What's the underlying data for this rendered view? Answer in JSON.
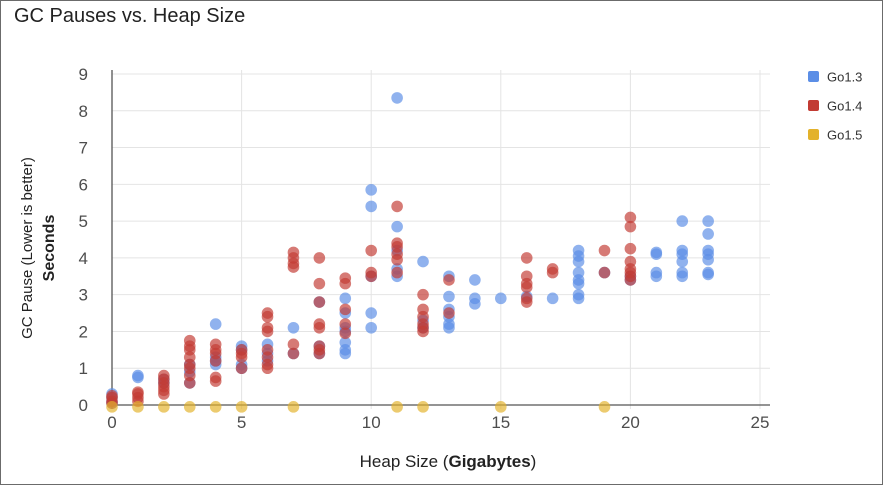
{
  "chart_data": {
    "type": "scatter",
    "title": "GC Pauses vs. Heap Size",
    "ylabel": "GC Pause (Lower is better)",
    "ylabel_unit": "Seconds",
    "xlabel": "Heap Size (",
    "xlabel_unit": "Gigabytes",
    "xlabel_suffix": ")",
    "xlim": [
      0,
      25
    ],
    "ylim": [
      0,
      9
    ],
    "xticks": [
      0,
      5,
      10,
      15,
      20,
      25
    ],
    "yticks": [
      0,
      1,
      2,
      3,
      4,
      5,
      6,
      7,
      8,
      9
    ],
    "grid": true,
    "legend_position": "right",
    "series": [
      {
        "name": "Go1.3",
        "color": "#5b8ee6",
        "points": [
          [
            0,
            0.05
          ],
          [
            0,
            0.1
          ],
          [
            0,
            0.2
          ],
          [
            0,
            0.3
          ],
          [
            1,
            0.75
          ],
          [
            1,
            0.8
          ],
          [
            2,
            0.6
          ],
          [
            2,
            0.7
          ],
          [
            3,
            0.6
          ],
          [
            3,
            0.9
          ],
          [
            3,
            1.1
          ],
          [
            4,
            1.1
          ],
          [
            4,
            1.2
          ],
          [
            4,
            1.3
          ],
          [
            4,
            2.2
          ],
          [
            5,
            1.0
          ],
          [
            5,
            1.1
          ],
          [
            5,
            1.5
          ],
          [
            5,
            1.6
          ],
          [
            6,
            1.2
          ],
          [
            6,
            1.4
          ],
          [
            6,
            1.65
          ],
          [
            7,
            1.4
          ],
          [
            7,
            2.1
          ],
          [
            8,
            1.4
          ],
          [
            8,
            1.6
          ],
          [
            8,
            2.8
          ],
          [
            9,
            1.4
          ],
          [
            9,
            1.5
          ],
          [
            9,
            1.7
          ],
          [
            9,
            2.0
          ],
          [
            9,
            2.1
          ],
          [
            9,
            2.5
          ],
          [
            9,
            2.9
          ],
          [
            10,
            2.1
          ],
          [
            10,
            2.5
          ],
          [
            10,
            3.5
          ],
          [
            10,
            5.4
          ],
          [
            10,
            5.85
          ],
          [
            11,
            3.5
          ],
          [
            11,
            3.7
          ],
          [
            11,
            4.2
          ],
          [
            11,
            4.85
          ],
          [
            11,
            8.35
          ],
          [
            12,
            2.1
          ],
          [
            12,
            2.3
          ],
          [
            12,
            3.9
          ],
          [
            13,
            2.1
          ],
          [
            13,
            2.2
          ],
          [
            13,
            2.4
          ],
          [
            13,
            2.6
          ],
          [
            13,
            2.95
          ],
          [
            13,
            3.5
          ],
          [
            14,
            2.75
          ],
          [
            14,
            2.9
          ],
          [
            14,
            3.4
          ],
          [
            15,
            2.9
          ],
          [
            16,
            2.95
          ],
          [
            17,
            2.9
          ],
          [
            18,
            2.9
          ],
          [
            18,
            3.0
          ],
          [
            18,
            3.3
          ],
          [
            18,
            3.4
          ],
          [
            18,
            3.6
          ],
          [
            18,
            3.9
          ],
          [
            18,
            4.05
          ],
          [
            18,
            4.2
          ],
          [
            19,
            3.6
          ],
          [
            20,
            3.4
          ],
          [
            20,
            3.5
          ],
          [
            21,
            3.5
          ],
          [
            21,
            3.6
          ],
          [
            21,
            4.1
          ],
          [
            21,
            4.15
          ],
          [
            22,
            3.5
          ],
          [
            22,
            3.6
          ],
          [
            22,
            3.9
          ],
          [
            22,
            4.1
          ],
          [
            22,
            4.2
          ],
          [
            22,
            5.0
          ],
          [
            23,
            3.55
          ],
          [
            23,
            3.6
          ],
          [
            23,
            3.95
          ],
          [
            23,
            4.1
          ],
          [
            23,
            4.2
          ],
          [
            23,
            4.65
          ],
          [
            23,
            5.0
          ]
        ]
      },
      {
        "name": "Go1.4",
        "color": "#c23b33",
        "points": [
          [
            0,
            0.05
          ],
          [
            0,
            0.1
          ],
          [
            0,
            0.2
          ],
          [
            0,
            0.25
          ],
          [
            1,
            0.1
          ],
          [
            1,
            0.2
          ],
          [
            1,
            0.3
          ],
          [
            1,
            0.35
          ],
          [
            2,
            0.3
          ],
          [
            2,
            0.4
          ],
          [
            2,
            0.5
          ],
          [
            2,
            0.6
          ],
          [
            2,
            0.7
          ],
          [
            2,
            0.8
          ],
          [
            3,
            0.6
          ],
          [
            3,
            0.8
          ],
          [
            3,
            1.0
          ],
          [
            3,
            1.1
          ],
          [
            3,
            1.3
          ],
          [
            3,
            1.5
          ],
          [
            3,
            1.6
          ],
          [
            3,
            1.75
          ],
          [
            4,
            0.65
          ],
          [
            4,
            0.75
          ],
          [
            4,
            1.2
          ],
          [
            4,
            1.4
          ],
          [
            4,
            1.5
          ],
          [
            4,
            1.65
          ],
          [
            5,
            1.0
          ],
          [
            5,
            1.3
          ],
          [
            5,
            1.4
          ],
          [
            5,
            1.5
          ],
          [
            6,
            1.0
          ],
          [
            6,
            1.1
          ],
          [
            6,
            1.3
          ],
          [
            6,
            1.5
          ],
          [
            6,
            2.0
          ],
          [
            6,
            2.1
          ],
          [
            6,
            2.4
          ],
          [
            6,
            2.5
          ],
          [
            7,
            1.4
          ],
          [
            7,
            1.65
          ],
          [
            7,
            3.75
          ],
          [
            7,
            3.85
          ],
          [
            7,
            4.0
          ],
          [
            7,
            4.15
          ],
          [
            8,
            1.4
          ],
          [
            8,
            1.5
          ],
          [
            8,
            1.6
          ],
          [
            8,
            2.1
          ],
          [
            8,
            2.2
          ],
          [
            8,
            2.8
          ],
          [
            8,
            3.3
          ],
          [
            8,
            4.0
          ],
          [
            9,
            1.95
          ],
          [
            9,
            2.2
          ],
          [
            9,
            2.6
          ],
          [
            9,
            3.3
          ],
          [
            9,
            3.45
          ],
          [
            10,
            3.5
          ],
          [
            10,
            3.6
          ],
          [
            10,
            4.2
          ],
          [
            11,
            3.6
          ],
          [
            11,
            3.95
          ],
          [
            11,
            4.1
          ],
          [
            11,
            4.3
          ],
          [
            11,
            4.4
          ],
          [
            11,
            5.4
          ],
          [
            12,
            2.0
          ],
          [
            12,
            2.1
          ],
          [
            12,
            2.2
          ],
          [
            12,
            2.4
          ],
          [
            12,
            2.6
          ],
          [
            12,
            3.0
          ],
          [
            13,
            2.5
          ],
          [
            13,
            3.4
          ],
          [
            16,
            2.8
          ],
          [
            16,
            2.9
          ],
          [
            16,
            3.2
          ],
          [
            16,
            3.3
          ],
          [
            16,
            3.5
          ],
          [
            16,
            4.0
          ],
          [
            17,
            3.6
          ],
          [
            17,
            3.7
          ],
          [
            19,
            3.6
          ],
          [
            19,
            4.2
          ],
          [
            20,
            3.4
          ],
          [
            20,
            3.5
          ],
          [
            20,
            3.6
          ],
          [
            20,
            3.7
          ],
          [
            20,
            3.9
          ],
          [
            20,
            4.25
          ],
          [
            20,
            4.85
          ],
          [
            20,
            5.1
          ]
        ]
      },
      {
        "name": "Go1.5",
        "color": "#e3b22b",
        "points": [
          [
            0,
            -0.05
          ],
          [
            1,
            -0.05
          ],
          [
            2,
            -0.05
          ],
          [
            3,
            -0.05
          ],
          [
            4,
            -0.05
          ],
          [
            5,
            -0.05
          ],
          [
            7,
            -0.05
          ],
          [
            11,
            -0.05
          ],
          [
            12,
            -0.05
          ],
          [
            15,
            -0.05
          ],
          [
            19,
            -0.05
          ]
        ]
      }
    ]
  }
}
